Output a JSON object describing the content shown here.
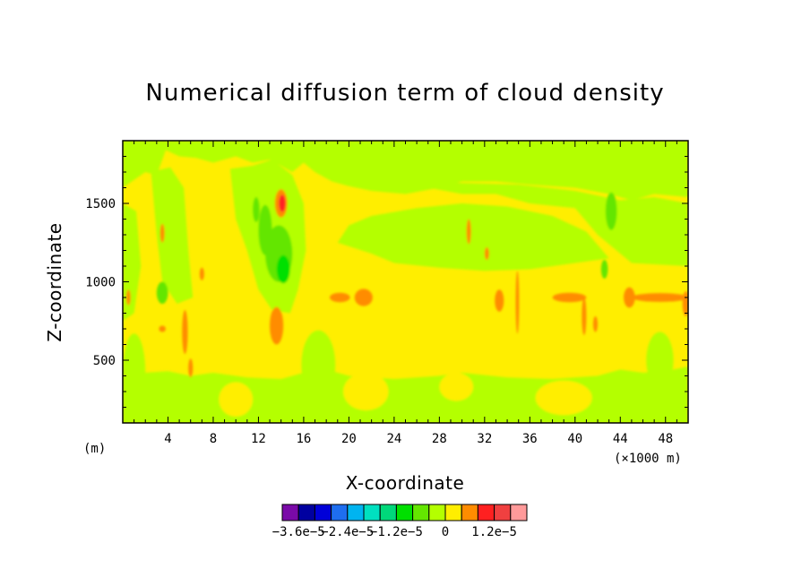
{
  "chart_data": {
    "type": "heatmap",
    "title": "Numerical diffusion term of cloud density",
    "xlabel": "X-coordinate",
    "ylabel": "Z-coordinate",
    "x_unit": "(×1000 m)",
    "y_unit": "(m)",
    "xlim": [
      0,
      50
    ],
    "ylim": [
      100,
      1900
    ],
    "x_ticks": [
      4,
      8,
      12,
      16,
      20,
      24,
      28,
      32,
      36,
      40,
      44,
      48
    ],
    "y_ticks": [
      500,
      1000,
      1500
    ],
    "colorbar": {
      "levels": [
        -3.6e-05,
        -3.2e-05,
        -2.8e-05,
        -2.4e-05,
        -2e-05,
        -1.6e-05,
        -1.2e-05,
        -8e-06,
        -4e-06,
        0,
        4e-06,
        8e-06,
        1.2e-05,
        1.6e-05,
        2e-05
      ],
      "colors": [
        "#7a0aa8",
        "#0000a0",
        "#0000d8",
        "#1e6ef0",
        "#00b4f0",
        "#00e0c0",
        "#00d87a",
        "#00e000",
        "#64e600",
        "#b4ff00",
        "#ffee00",
        "#ff8c00",
        "#ff2020",
        "#f04040",
        "#ff9a9a"
      ],
      "labels": [
        "−3.6e−5",
        "−2.4e−5",
        "−1.2e−5",
        "0",
        "1.2e−5"
      ]
    },
    "field_summary": {
      "background_level_color": "#ffee00",
      "features": [
        {
          "kind": "band",
          "color": "#b4ff00",
          "x": [
            0,
            50
          ],
          "z": [
            1600,
            1900
          ]
        },
        {
          "kind": "band",
          "color": "#b4ff00",
          "x": [
            0,
            50
          ],
          "z": [
            100,
            400
          ]
        },
        {
          "kind": "blob",
          "color": "#b4ff00",
          "x": [
            10,
            15
          ],
          "z": [
            700,
            1700
          ]
        },
        {
          "kind": "blob",
          "color": "#64e600",
          "x": [
            12.5,
            15
          ],
          "z": [
            1000,
            1400
          ]
        },
        {
          "kind": "blob",
          "color": "#ff2020",
          "x": [
            13.6,
            14.6
          ],
          "z": [
            1430,
            1580
          ]
        },
        {
          "kind": "blob",
          "color": "#ff8c00",
          "x": [
            18,
            22
          ],
          "z": [
            840,
            950
          ]
        },
        {
          "kind": "blob",
          "color": "#ff8c00",
          "x": [
            44,
            50
          ],
          "z": [
            870,
            930
          ]
        },
        {
          "kind": "blob",
          "color": "#ff8c00",
          "x": [
            38,
            41
          ],
          "z": [
            860,
            940
          ]
        },
        {
          "kind": "blob",
          "color": "#b4ff00",
          "x": [
            26,
            50
          ],
          "z": [
            1050,
            1500
          ]
        }
      ]
    }
  }
}
